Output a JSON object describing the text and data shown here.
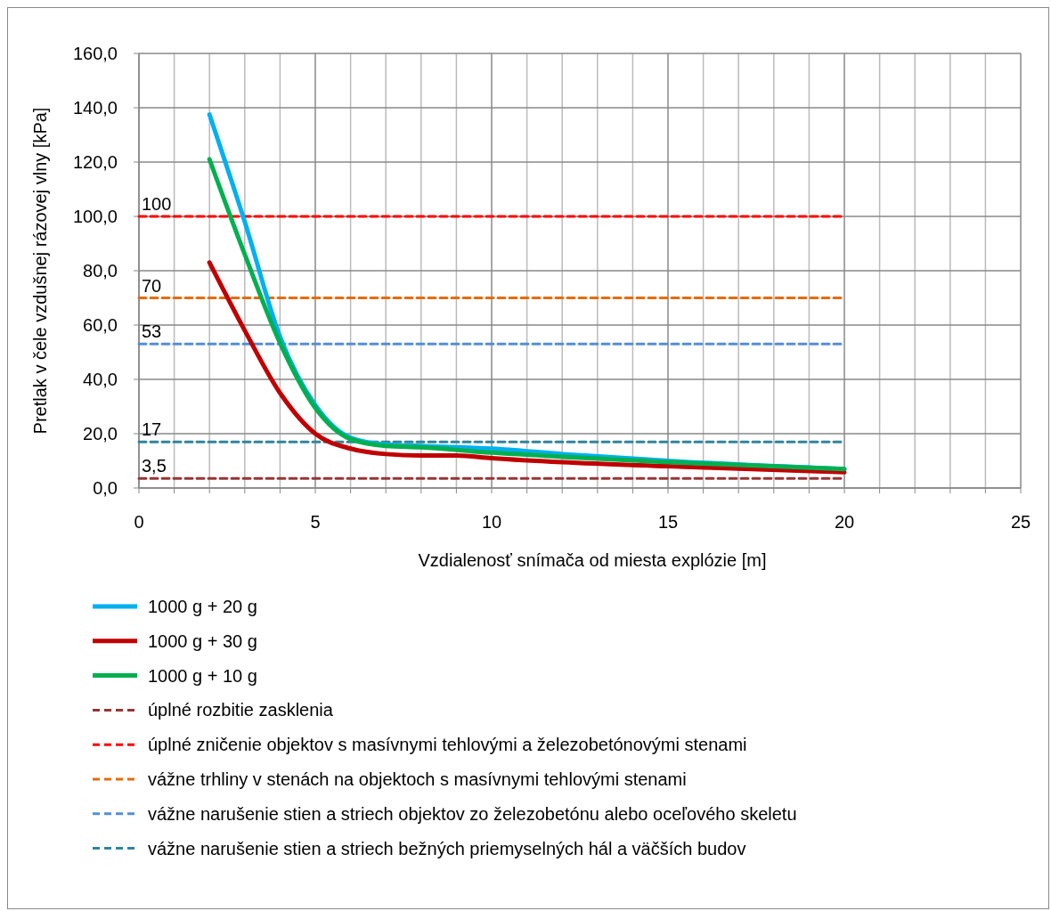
{
  "chart_data": {
    "type": "line",
    "xlabel": "Vzdialenosť  snímača od miesta explózie [m]",
    "ylabel": "Pretlak v čele vzdušnej rázovej vlny [kPa]",
    "xlim": [
      0,
      25
    ],
    "ylim": [
      0,
      160
    ],
    "xticks": [
      0,
      {
        "value": 1,
        "label": null
      },
      {
        "value": 2,
        "label": null
      },
      {
        "value": 3,
        "label": null
      },
      {
        "value": 4,
        "label": null
      },
      5,
      {
        "value": 6,
        "label": null
      },
      {
        "value": 7,
        "label": null
      },
      {
        "value": 8,
        "label": null
      },
      {
        "value": 9,
        "label": null
      },
      10,
      {
        "value": 11,
        "label": null
      },
      {
        "value": 12,
        "label": null
      },
      {
        "value": 13,
        "label": null
      },
      {
        "value": 14,
        "label": null
      },
      15,
      {
        "value": 16,
        "label": null
      },
      {
        "value": 17,
        "label": null
      },
      {
        "value": 18,
        "label": null
      },
      {
        "value": 19,
        "label": null
      },
      20,
      {
        "value": 21,
        "label": null
      },
      {
        "value": 22,
        "label": null
      },
      {
        "value": 23,
        "label": null
      },
      {
        "value": 24,
        "label": null
      },
      25
    ],
    "yticks": [
      {
        "value": 0,
        "label": "0,0"
      },
      {
        "value": 20,
        "label": "20,0"
      },
      {
        "value": 40,
        "label": "40,0"
      },
      {
        "value": 60,
        "label": "60,0"
      },
      {
        "value": 80,
        "label": "80,0"
      },
      {
        "value": 100,
        "label": "100,0"
      },
      {
        "value": 120,
        "label": "120,0"
      },
      {
        "value": 140,
        "label": "140,0"
      },
      {
        "value": 160,
        "label": "160,0"
      }
    ],
    "grid": true,
    "legend": "bottom",
    "marker": "none",
    "series": [
      {
        "name": "1000 g + 20 g",
        "color": "#00b0f0",
        "line_style": "solid",
        "x": [
          2,
          3,
          4,
          5,
          6,
          7,
          8,
          10,
          12,
          15,
          20
        ],
        "values": [
          137.5,
          98,
          55.7,
          30.5,
          18.5,
          16,
          15.5,
          14.5,
          12.5,
          10,
          7
        ]
      },
      {
        "name": "1000 g + 30 g",
        "color": "#c00000",
        "line_style": "solid",
        "x": [
          2,
          3,
          4,
          5,
          6,
          7,
          8,
          9,
          10,
          12,
          15,
          20
        ],
        "values": [
          83,
          58,
          35,
          20,
          14.5,
          12.5,
          12,
          12,
          11,
          9.5,
          8,
          5.8
        ]
      },
      {
        "name": "1000 g + 10 g",
        "color": "#00b050",
        "line_style": "solid",
        "x": [
          2,
          3,
          4,
          5,
          6,
          7,
          8,
          10,
          12,
          15,
          20
        ],
        "values": [
          121,
          86,
          53.4,
          29.5,
          18,
          15.5,
          15,
          13,
          11.5,
          9.5,
          7
        ]
      },
      {
        "name": "úplné rozbitie zasklenia",
        "color": "#953735",
        "line_style": "dashed",
        "x": [
          0,
          20
        ],
        "values": [
          3.5,
          3.5
        ]
      },
      {
        "name": "úplné zničenie objektov  s masívnymi tehlovými a železobetónovými stenami",
        "color": "#ff0000",
        "line_style": "dashed",
        "x": [
          0,
          20
        ],
        "values": [
          100,
          100
        ]
      },
      {
        "name": "vážne trhliny v stenách na objektoch  s masívnymi tehlovými stenami",
        "color": "#e46c0a",
        "line_style": "dashed",
        "x": [
          0,
          20
        ],
        "values": [
          70,
          70
        ]
      },
      {
        "name": "vážne narušenie stien a striech objektov  zo železobetónu alebo oceľového skeletu",
        "color": "#558ed5",
        "line_style": "dashed",
        "x": [
          0,
          20
        ],
        "values": [
          53,
          53
        ]
      },
      {
        "name": "vážne narušenie stien a striech bežných priemyselných hál a väčších budov",
        "color": "#31859c",
        "line_style": "dashed",
        "x": [
          0,
          20
        ],
        "values": [
          17,
          17
        ]
      }
    ],
    "annotations": [
      {
        "text": "100",
        "y": 100
      },
      {
        "text": "70",
        "y": 70
      },
      {
        "text": "53",
        "y": 53
      },
      {
        "text": "17",
        "y": 17
      },
      {
        "text": "3,5",
        "y": 3.5
      }
    ]
  }
}
